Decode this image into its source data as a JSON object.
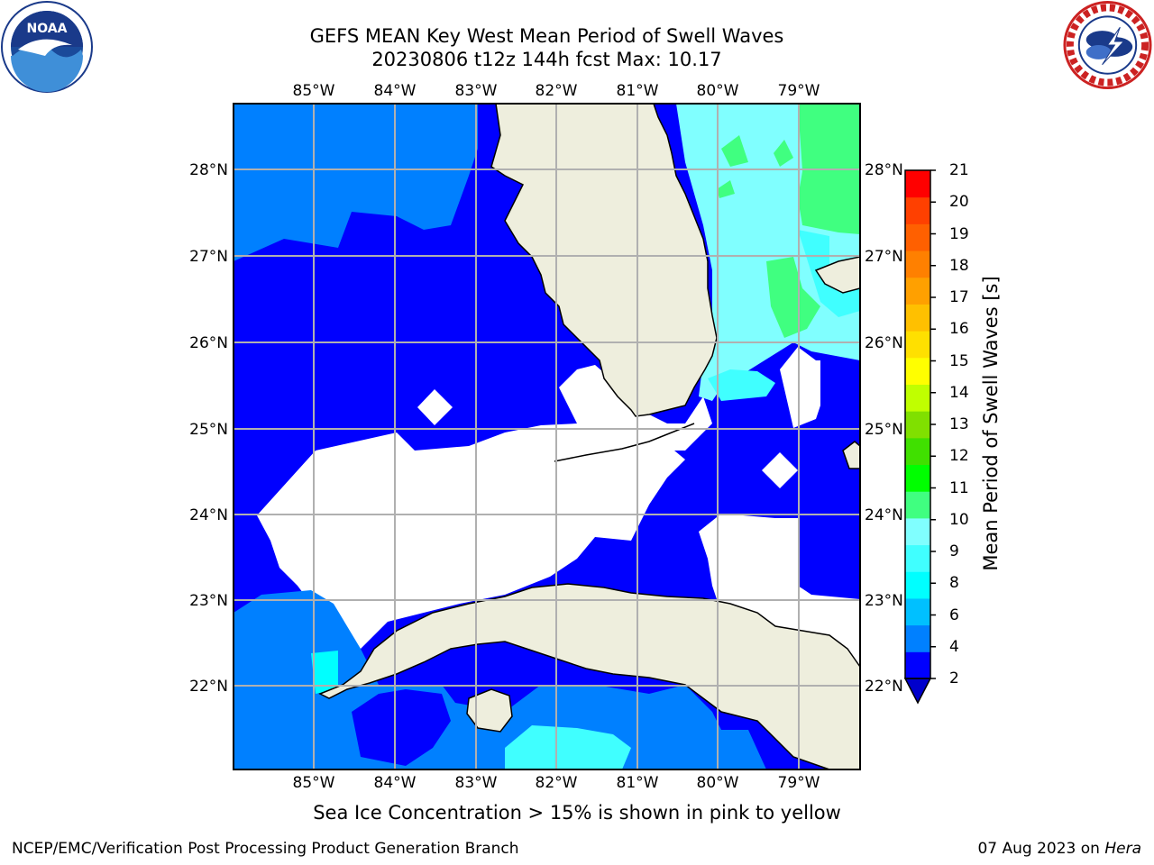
{
  "title_line1": "GEFS MEAN Key West Mean Period of Swell Waves",
  "title_line2": "20230806 t12z 144h fcst   Max: 10.17",
  "chart_data": {
    "type": "heatmap",
    "variable": "Mean Period of Swell Waves [s]",
    "max_value": 10.17,
    "lon_ticks": [
      "85°W",
      "84°W",
      "83°W",
      "82°W",
      "81°W",
      "80°W",
      "79°W"
    ],
    "lat_ticks": [
      "28°N",
      "27°N",
      "26°N",
      "25°N",
      "24°N",
      "23°N",
      "22°N"
    ],
    "lon_range": [
      -86.0,
      -78.25
    ],
    "lat_range": [
      21.05,
      28.8
    ],
    "colorbar": {
      "label": "Mean Period of Swell Waves [s]",
      "ticks": [
        21,
        20,
        19,
        18,
        17,
        16,
        15,
        14,
        13,
        12,
        11,
        10,
        9,
        8,
        6,
        4,
        2
      ],
      "colors": [
        "#0000ff",
        "#0080ff",
        "#00c0ff",
        "#00ffff",
        "#40ffff",
        "#80ffff",
        "#40ff80",
        "#00ff00",
        "#40e000",
        "#80e000",
        "#c0ff00",
        "#ffff00",
        "#ffe000",
        "#ffc000",
        "#ffa000",
        "#ff8000",
        "#ff6000",
        "#ff4000",
        "#ff0000"
      ],
      "under_color": "#0000cc"
    },
    "grid": true
  },
  "sea_ice_note": "Sea Ice Concentration > 15% is shown in pink to yellow",
  "footer_left": "NCEP/EMC/Verification Post Processing Product Generation Branch",
  "footer_date": "07 Aug 2023 on",
  "footer_machine": "Hera",
  "colors": {
    "land": "#eeeedd",
    "grid": "#b0b0b0",
    "deep_blue": "#0000ff",
    "mid_blue": "#0080ff",
    "cyan": "#80ffff",
    "green": "#40ff80"
  },
  "logos": {
    "left": "noaa-logo",
    "right": "nws-logo"
  }
}
